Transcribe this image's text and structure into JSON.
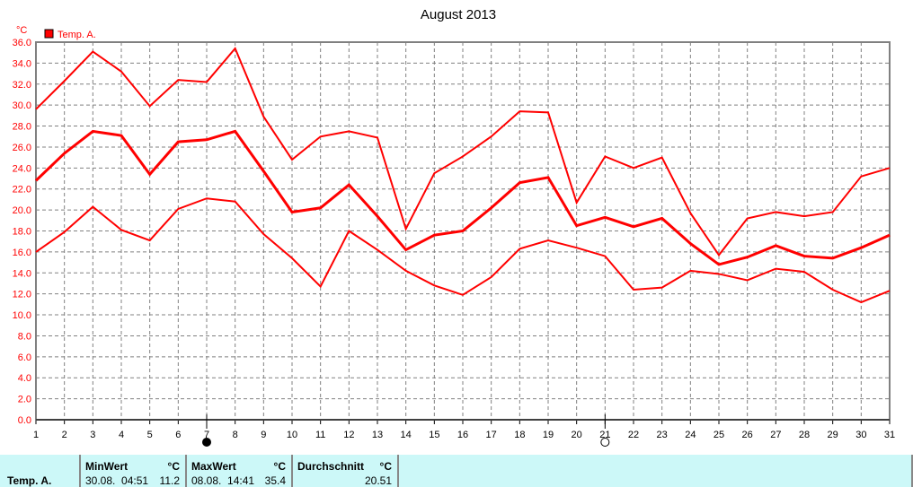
{
  "chart_data": {
    "type": "line",
    "title": "August 2013",
    "ylabel": "°C",
    "ylim": [
      0,
      36
    ],
    "yticks": [
      "0.0",
      "2.0",
      "4.0",
      "6.0",
      "8.0",
      "10.0",
      "12.0",
      "14.0",
      "16.0",
      "18.0",
      "20.0",
      "22.0",
      "24.0",
      "26.0",
      "28.0",
      "30.0",
      "32.0",
      "34.0",
      "36.0"
    ],
    "x": [
      1,
      2,
      3,
      4,
      5,
      6,
      7,
      8,
      9,
      10,
      11,
      12,
      13,
      14,
      15,
      16,
      17,
      18,
      19,
      20,
      21,
      22,
      23,
      24,
      25,
      26,
      27,
      28,
      29,
      30,
      31
    ],
    "grid": true,
    "legend": {
      "label": "Temp. A.",
      "color": "#ff0000",
      "placement": "top-left"
    },
    "series": [
      {
        "values": [
          29.6,
          32.3,
          35.1,
          33.2,
          29.9,
          32.4,
          32.2,
          35.4,
          28.9,
          24.8,
          27.0,
          27.5,
          26.9,
          18.2,
          23.5,
          25.1,
          27.0,
          29.4,
          29.3,
          20.7,
          25.1,
          24.0,
          25.0,
          19.7,
          15.7,
          19.2,
          19.8,
          19.4,
          19.8,
          23.2,
          24.0
        ]
      },
      {
        "values": [
          22.8,
          25.4,
          27.5,
          27.1,
          23.4,
          26.5,
          26.7,
          27.5,
          23.7,
          19.8,
          20.2,
          22.4,
          19.4,
          16.2,
          17.6,
          18.0,
          20.2,
          22.6,
          23.1,
          18.5,
          19.3,
          18.4,
          19.2,
          16.8,
          14.8,
          15.5,
          16.6,
          15.6,
          15.4,
          16.4,
          17.6
        ],
        "bold": true
      },
      {
        "values": [
          16.0,
          17.9,
          20.3,
          18.1,
          17.1,
          20.1,
          21.1,
          20.8,
          17.7,
          15.4,
          12.7,
          18.0,
          16.2,
          14.2,
          12.8,
          11.9,
          13.6,
          16.3,
          17.1,
          16.4,
          15.6,
          12.4,
          12.6,
          14.2,
          13.9,
          13.3,
          14.4,
          14.1,
          12.4,
          11.2,
          12.3
        ]
      }
    ],
    "markers": [
      {
        "day": 7,
        "type": "filled-circle"
      },
      {
        "day": 21,
        "type": "open-circle"
      }
    ]
  },
  "table": {
    "row_label": "Temp. A.",
    "min_header": "MinWert",
    "max_header": "MaxWert",
    "avg_header": "Durchschnitt",
    "unit": "°C",
    "min_time": "30.08.  04:51",
    "min_value": "11.2",
    "max_time": "08.08.  14:41",
    "max_value": "35.4",
    "avg_value": "20.51"
  }
}
